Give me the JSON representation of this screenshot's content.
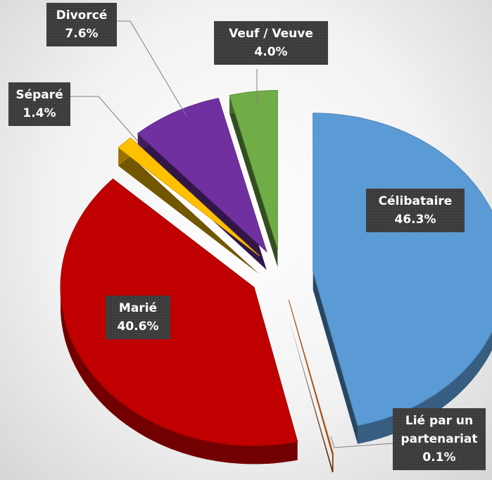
{
  "chart_data": {
    "type": "pie",
    "categories": [
      "Célibataire",
      "Lié par un partenariat",
      "Marié",
      "Séparé",
      "Divorcé",
      "Veuf / Veuve"
    ],
    "values": [
      46.3,
      0.1,
      40.6,
      1.4,
      7.6,
      4.0
    ],
    "value_labels": [
      "46.3%",
      "0.1%",
      "40.6%",
      "1.4%",
      "7.6%",
      "4.0%"
    ],
    "colors": [
      "#5b9bd5",
      "#c55a11",
      "#c00000",
      "#ffc000",
      "#7030a0",
      "#70ad47"
    ]
  }
}
